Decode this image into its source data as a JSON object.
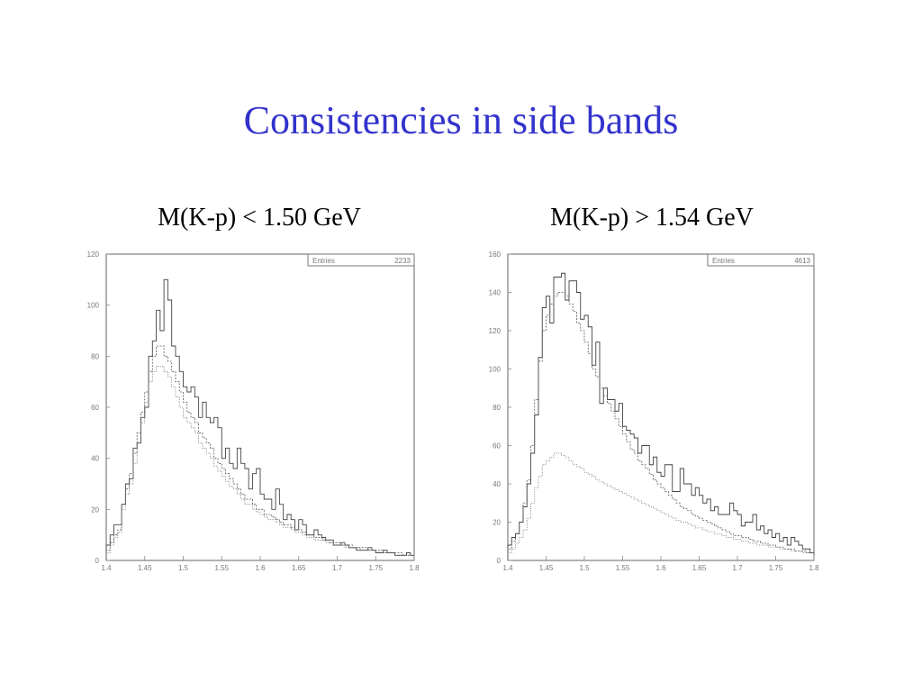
{
  "title": "Consistencies in side bands",
  "charts": [
    {
      "subtitle": "M(K-p) < 1.50 GeV",
      "stats_label": "Entries",
      "stats_value": "2233"
    },
    {
      "subtitle": "M(K-p) > 1.54 GeV",
      "stats_label": "Entries",
      "stats_value": "4613"
    }
  ],
  "chart_data": [
    {
      "type": "histogram",
      "title": "M(K-p) < 1.50 GeV",
      "xlim": [
        1.4,
        1.8
      ],
      "ylim": [
        0,
        120
      ],
      "x_ticks": [
        "1.4",
        "1.45",
        "1.5",
        "1.55",
        "1.6",
        "1.65",
        "1.7",
        "1.75",
        "1.8"
      ],
      "y_ticks": [
        "0",
        "20",
        "40",
        "60",
        "80",
        "100",
        "120"
      ],
      "legend": {
        "Entries": 2233
      },
      "bin_width": 0.005,
      "series": [
        {
          "values": [
            6,
            10,
            14,
            14,
            22,
            30,
            32,
            44,
            46,
            56,
            60,
            80,
            86,
            98,
            90,
            110,
            102,
            84,
            80,
            74,
            68,
            66,
            68,
            64,
            56,
            62,
            56,
            54,
            56,
            52,
            40,
            44,
            38,
            36,
            44,
            38,
            36,
            28,
            34,
            36,
            26,
            24,
            24,
            20,
            28,
            22,
            16,
            18,
            16,
            12,
            16,
            14,
            10,
            10,
            12,
            10,
            9,
            8,
            8,
            6,
            6,
            7,
            6,
            5,
            5,
            4,
            4,
            4,
            5,
            4,
            3,
            3,
            4,
            3,
            3,
            2,
            2,
            2,
            3,
            2
          ]
        },
        {
          "values": [
            4,
            7,
            10,
            12,
            22,
            28,
            34,
            42,
            50,
            58,
            66,
            74,
            80,
            84,
            84,
            80,
            78,
            74,
            70,
            66,
            62,
            58,
            56,
            54,
            50,
            48,
            46,
            44,
            40,
            38,
            36,
            34,
            32,
            30,
            28,
            26,
            24,
            24,
            22,
            20,
            20,
            18,
            18,
            17,
            16,
            15,
            14,
            14,
            13,
            12,
            12,
            11,
            10,
            10,
            9,
            9,
            8,
            8,
            7,
            7,
            7,
            6,
            6,
            6,
            5,
            5,
            5,
            5,
            4,
            4,
            4,
            4,
            3,
            3,
            3,
            3,
            3,
            2,
            2,
            2
          ]
        },
        {
          "values": [
            3,
            6,
            9,
            11,
            20,
            26,
            30,
            38,
            46,
            54,
            62,
            70,
            74,
            76,
            76,
            74,
            72,
            68,
            64,
            60,
            56,
            54,
            52,
            50,
            46,
            44,
            42,
            40,
            37,
            35,
            33,
            31,
            29,
            28,
            26,
            24,
            22,
            22,
            20,
            19,
            18,
            17,
            16,
            16,
            15,
            14,
            13,
            13,
            12,
            11,
            11,
            10,
            9,
            9,
            8,
            8,
            8,
            7,
            7,
            6,
            6,
            6,
            5,
            5,
            5,
            5,
            4,
            4,
            4,
            4,
            3,
            3,
            3,
            3,
            3,
            2,
            2,
            2,
            2,
            2
          ]
        }
      ]
    },
    {
      "type": "histogram",
      "title": "M(K-p) > 1.54 GeV",
      "xlim": [
        1.4,
        1.8
      ],
      "ylim": [
        0,
        160
      ],
      "x_ticks": [
        "1.4",
        "1.45",
        "1.5",
        "1.55",
        "1.6",
        "1.65",
        "1.7",
        "1.75",
        "1.8"
      ],
      "y_ticks": [
        "0",
        "20",
        "40",
        "60",
        "80",
        "100",
        "120",
        "140",
        "160"
      ],
      "legend": {
        "Entries": 4613
      },
      "bin_width": 0.005,
      "series": [
        {
          "values": [
            8,
            12,
            14,
            20,
            28,
            40,
            56,
            76,
            106,
            132,
            138,
            124,
            148,
            148,
            150,
            136,
            146,
            146,
            140,
            126,
            128,
            122,
            102,
            114,
            82,
            90,
            84,
            84,
            78,
            82,
            70,
            68,
            66,
            64,
            56,
            60,
            60,
            50,
            54,
            46,
            44,
            50,
            50,
            36,
            36,
            48,
            40,
            40,
            34,
            38,
            34,
            30,
            32,
            26,
            28,
            24,
            24,
            24,
            30,
            26,
            24,
            18,
            20,
            20,
            24,
            16,
            18,
            14,
            16,
            12,
            14,
            10,
            12,
            8,
            12,
            10,
            8,
            6,
            6,
            4
          ]
        },
        {
          "values": [
            6,
            10,
            14,
            20,
            30,
            42,
            60,
            84,
            104,
            120,
            128,
            134,
            138,
            140,
            140,
            138,
            134,
            130,
            124,
            120,
            114,
            108,
            100,
            96,
            90,
            86,
            82,
            78,
            74,
            70,
            66,
            62,
            58,
            56,
            52,
            50,
            48,
            45,
            42,
            40,
            38,
            36,
            34,
            32,
            30,
            28,
            27,
            26,
            24,
            23,
            22,
            21,
            20,
            19,
            18,
            17,
            16,
            15,
            14,
            13,
            13,
            12,
            12,
            11,
            10,
            10,
            9,
            9,
            8,
            8,
            7,
            7,
            6,
            6,
            6,
            5,
            5,
            5,
            4,
            4
          ]
        },
        {
          "values": [
            4,
            6,
            9,
            12,
            16,
            22,
            30,
            38,
            44,
            50,
            52,
            54,
            56,
            56,
            55,
            54,
            52,
            50,
            49,
            48,
            46,
            45,
            44,
            42,
            41,
            40,
            39,
            38,
            37,
            36,
            35,
            34,
            33,
            32,
            31,
            30,
            29,
            28,
            27,
            26,
            25,
            24,
            23,
            22,
            21,
            20,
            20,
            19,
            18,
            17,
            17,
            16,
            15,
            15,
            14,
            14,
            13,
            12,
            12,
            11,
            11,
            10,
            10,
            9,
            9,
            8,
            8,
            8,
            7,
            7,
            7,
            6,
            6,
            6,
            5,
            5,
            5,
            4,
            4,
            4
          ]
        }
      ]
    }
  ]
}
